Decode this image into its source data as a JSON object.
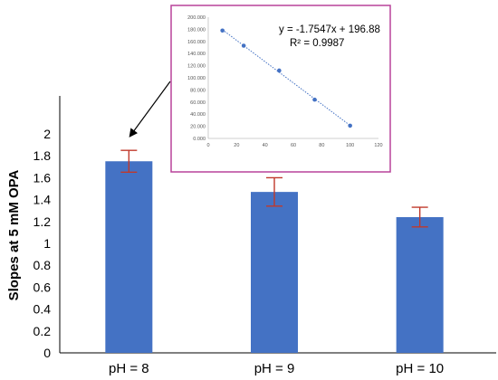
{
  "chart_data": [
    {
      "type": "bar",
      "ylabel": "Slopes at 5 mM OPA",
      "xlabel": "",
      "title": "",
      "categories": [
        "pH = 8",
        "pH = 9",
        "pH = 10"
      ],
      "values": [
        1.75,
        1.47,
        1.24
      ],
      "error": [
        0.1,
        0.13,
        0.09
      ],
      "ylim": [
        0,
        2
      ],
      "yticks": [
        "0",
        "0.2",
        "0.4",
        "0.6",
        "0.8",
        "1",
        "1.2",
        "1.4",
        "1.6",
        "1.8",
        "2"
      ],
      "bar_color": "#4472C4",
      "error_color": "#C0392B",
      "grid": false,
      "annotation": "arrow from inset to first bar"
    },
    {
      "type": "scatter",
      "title": "",
      "xlabel": "",
      "ylabel": "",
      "x": [
        10,
        25,
        50,
        75,
        100
      ],
      "y": [
        178,
        153,
        112,
        64,
        21
      ],
      "xlim": [
        0,
        120
      ],
      "ylim": [
        0,
        200
      ],
      "xticks": [
        "0",
        "20",
        "40",
        "60",
        "80",
        "100",
        "120"
      ],
      "yticks": [
        "0.000",
        "20.000",
        "40.000",
        "60.000",
        "80.000",
        "100.000",
        "120.000",
        "140.000",
        "160.000",
        "180.000",
        "200.000"
      ],
      "trendline": {
        "slope": -1.7547,
        "intercept": 196.88,
        "style": "dotted"
      },
      "equation": "y = -1.7547x + 196.88",
      "r_squared": "R² = 0.9987",
      "point_color": "#4472C4",
      "frame_color": "#B8429A"
    }
  ]
}
